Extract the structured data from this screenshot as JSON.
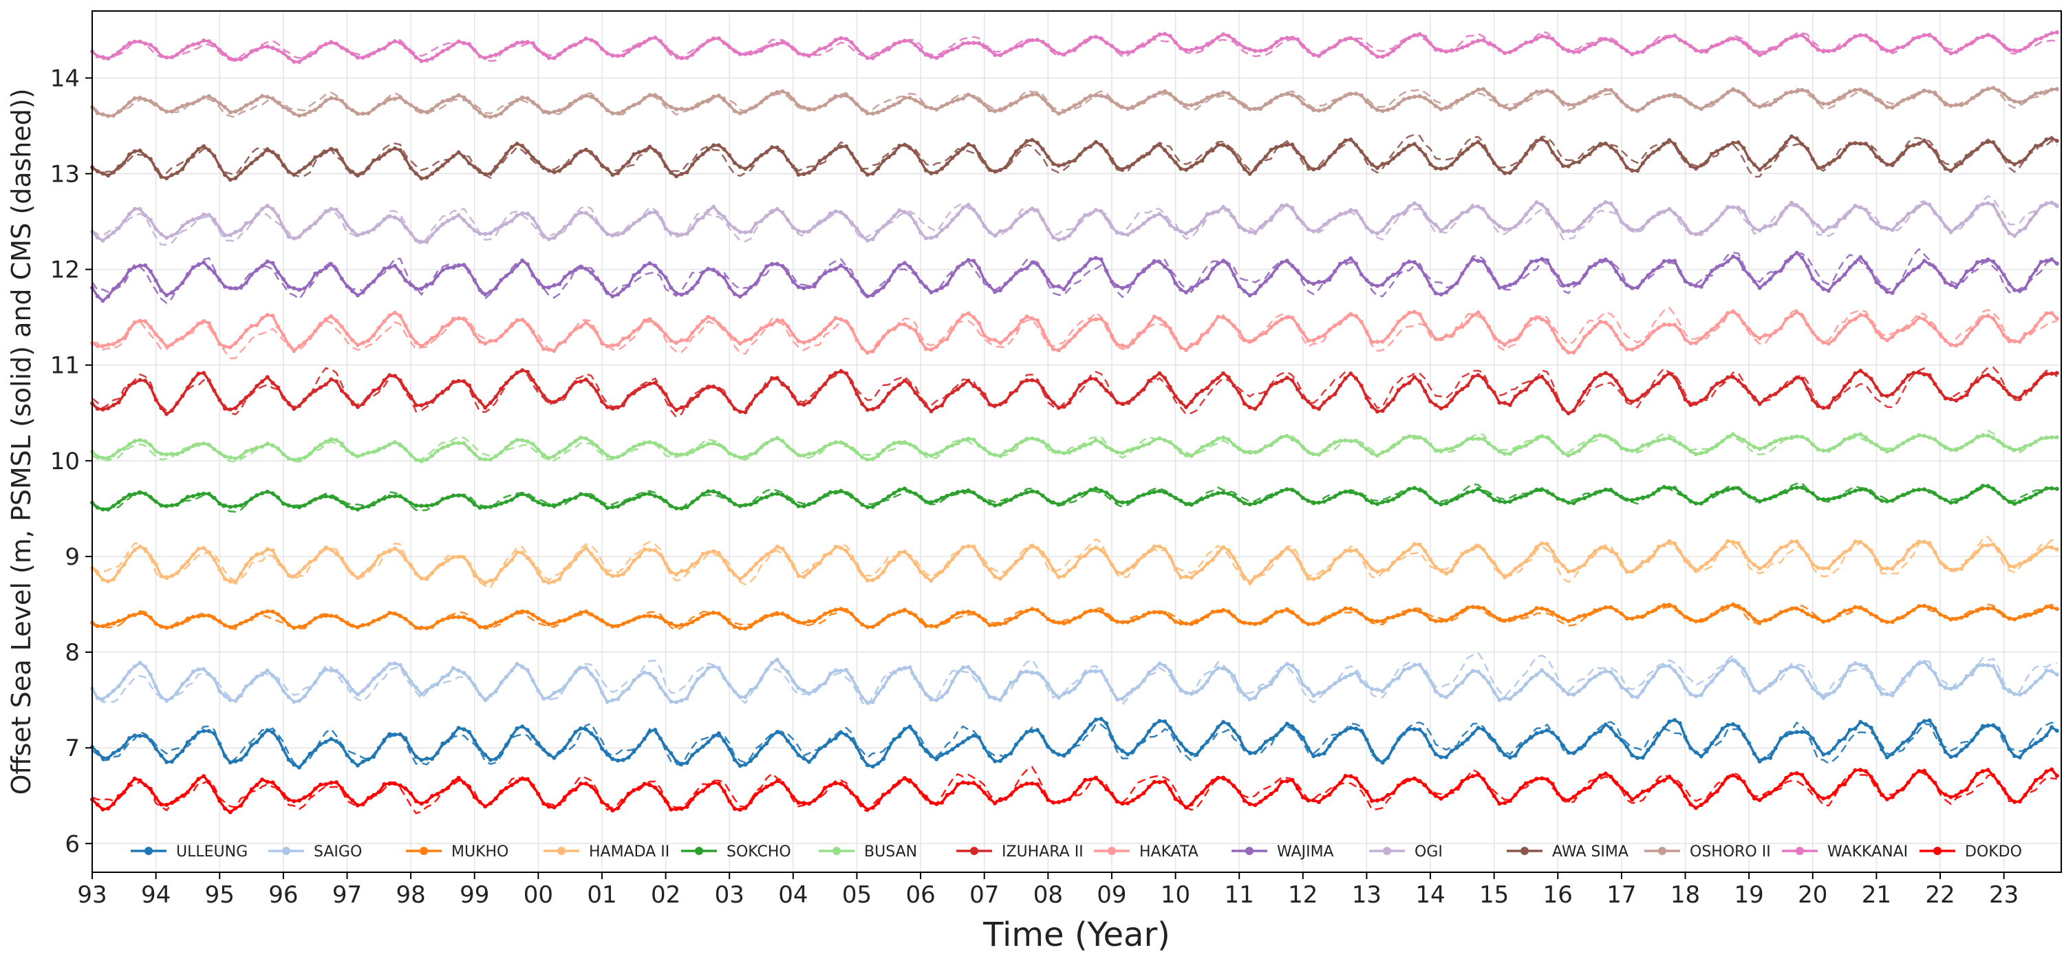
{
  "chart_data": {
    "type": "line",
    "title": "",
    "xlabel": "Time (Year)",
    "ylabel": "Offset Sea Level (m, PSMSL (solid) and CMS (dashed))",
    "xlim": [
      1993.0,
      2023.9
    ],
    "ylim": [
      5.7,
      14.7
    ],
    "x_tick_values": [
      1993,
      1994,
      1995,
      1996,
      1997,
      1998,
      1999,
      2000,
      2001,
      2002,
      2003,
      2004,
      2005,
      2006,
      2007,
      2008,
      2009,
      2010,
      2011,
      2012,
      2013,
      2014,
      2015,
      2016,
      2017,
      2018,
      2019,
      2020,
      2021,
      2022,
      2023
    ],
    "x_tick_labels": [
      "93",
      "94",
      "95",
      "96",
      "97",
      "98",
      "99",
      "00",
      "01",
      "02",
      "03",
      "04",
      "05",
      "06",
      "07",
      "08",
      "09",
      "10",
      "11",
      "12",
      "13",
      "14",
      "15",
      "16",
      "17",
      "18",
      "19",
      "20",
      "21",
      "22",
      "23"
    ],
    "y_ticks": [
      6,
      7,
      8,
      9,
      10,
      11,
      12,
      13,
      14
    ],
    "grid": true,
    "legend_position": "bottom, single row inside axes",
    "line_styles": {
      "psmsl": "solid with dot markers",
      "cms": "dashed"
    },
    "series": [
      {
        "name": "ULLEUNG",
        "color": "#1f77b4",
        "offset": 7.0,
        "amplitude": 0.15,
        "phase_month": 9.0
      },
      {
        "name": "SAIGO",
        "color": "#aec7e8",
        "offset": 7.65,
        "amplitude": 0.15,
        "phase_month": 8.5
      },
      {
        "name": "MUKHO",
        "color": "#ff7f0e",
        "offset": 8.32,
        "amplitude": 0.07,
        "phase_month": 8.5
      },
      {
        "name": "HAMADA II",
        "color": "#ffbb78",
        "offset": 8.9,
        "amplitude": 0.15,
        "phase_month": 8.5
      },
      {
        "name": "SOKCHO",
        "color": "#2ca02c",
        "offset": 9.57,
        "amplitude": 0.07,
        "phase_month": 8.5
      },
      {
        "name": "BUSAN",
        "color": "#98df8a",
        "offset": 10.1,
        "amplitude": 0.08,
        "phase_month": 8.5
      },
      {
        "name": "IZUHARA II",
        "color": "#d62728",
        "offset": 10.68,
        "amplitude": 0.15,
        "phase_month": 8.5
      },
      {
        "name": "HAKATA",
        "color": "#ff9896",
        "offset": 11.3,
        "amplitude": 0.14,
        "phase_month": 8.5
      },
      {
        "name": "WAJIMA",
        "color": "#9467bd",
        "offset": 11.88,
        "amplitude": 0.15,
        "phase_month": 8.5
      },
      {
        "name": "OGI",
        "color": "#c5b0d5",
        "offset": 12.45,
        "amplitude": 0.13,
        "phase_month": 8.5
      },
      {
        "name": "AWA SIMA",
        "color": "#8c564b",
        "offset": 13.12,
        "amplitude": 0.13,
        "phase_month": 8.5
      },
      {
        "name": "OSHORO II",
        "color": "#c49c94",
        "offset": 13.7,
        "amplitude": 0.08,
        "phase_month": 9.0
      },
      {
        "name": "WAKKANAI",
        "color": "#e377c2",
        "offset": 14.28,
        "amplitude": 0.08,
        "phase_month": 9.0
      },
      {
        "name": "DOKDO",
        "color": "#ff0000",
        "offset": 6.5,
        "amplitude": 0.13,
        "phase_month": 8.5
      }
    ]
  }
}
